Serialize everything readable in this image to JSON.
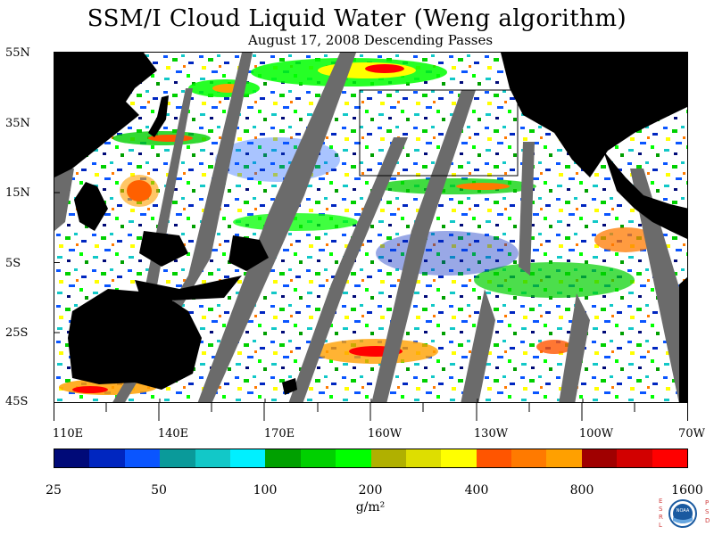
{
  "title": "SSM/I Cloud Liquid Water (Weng algorithm)",
  "subtitle": "August 17, 2008  Descending Passes",
  "lat_labels": [
    "55N",
    "35N",
    "15N",
    "5S",
    "25S",
    "45S"
  ],
  "lon_labels": [
    "110E",
    "140E",
    "170E",
    "160W",
    "130W",
    "100W",
    "70W"
  ],
  "colorbar": {
    "labels": [
      "25",
      "50",
      "100",
      "200",
      "400",
      "800",
      "1600"
    ],
    "units": "g/m²",
    "colors": [
      "#000a78",
      "#0026c0",
      "#0a55ff",
      "#0a9a9a",
      "#12c8c8",
      "#00f0ff",
      "#00a000",
      "#00d000",
      "#00ff00",
      "#b0b000",
      "#dede00",
      "#ffff00",
      "#ff5500",
      "#ff7a00",
      "#ffa000",
      "#a00000",
      "#d20000",
      "#ff0000"
    ]
  },
  "logo": {
    "left_text": "ESRL",
    "right_text": "PSD",
    "center_text": "NOAA"
  },
  "land_color": "#000000",
  "nodata_color": "#6b6b6b"
}
